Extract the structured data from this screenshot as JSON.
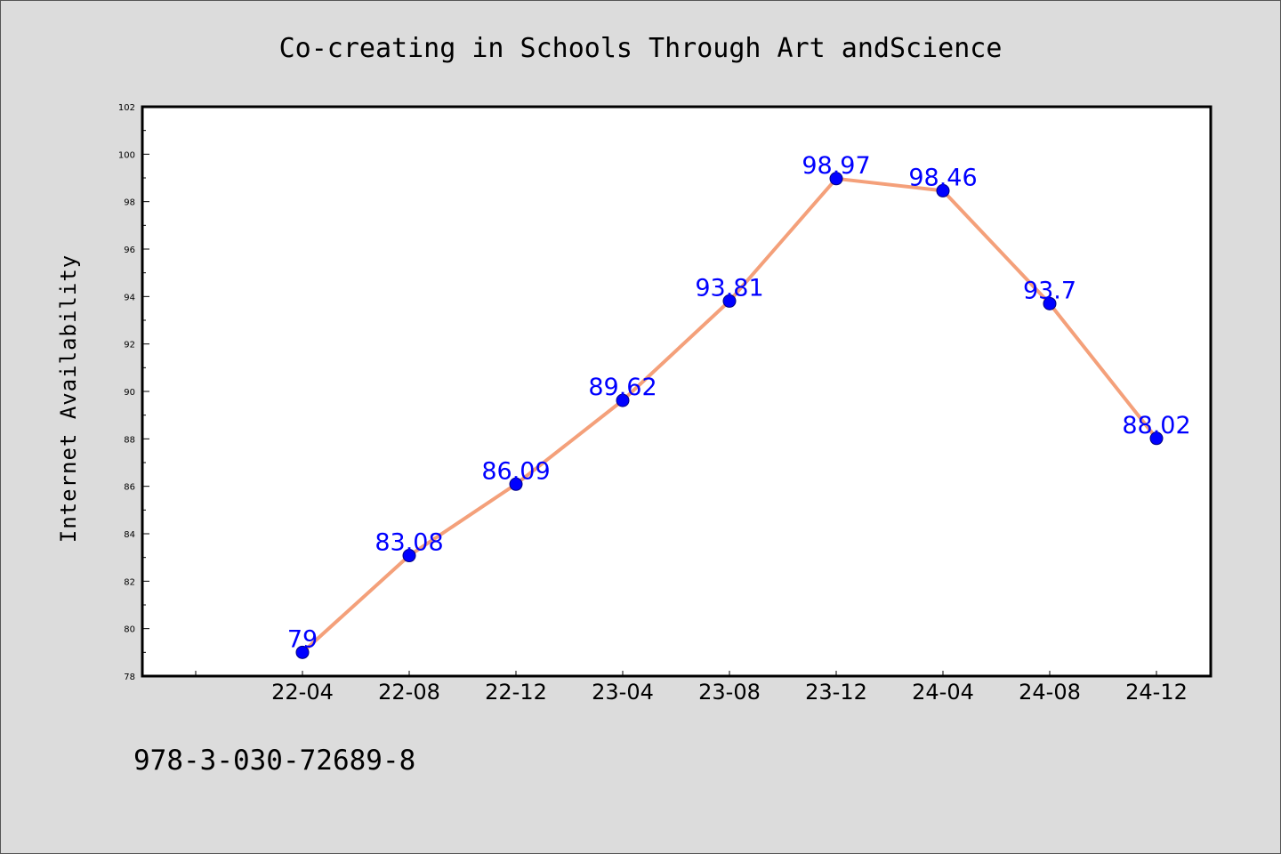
{
  "chart_data": {
    "type": "line",
    "title": "Co-creating in Schools Through Art andScience",
    "xlabel": "",
    "ylabel": "Internet Availability",
    "categories": [
      "22-04",
      "22-08",
      "22-12",
      "23-04",
      "23-08",
      "23-12",
      "24-04",
      "24-08",
      "24-12"
    ],
    "series": [
      {
        "values": [
          79,
          83.08,
          86.09,
          89.62,
          93.81,
          98.97,
          98.46,
          93.7,
          88.02
        ],
        "labels": [
          "79",
          "83.08",
          "86.09",
          "89.62",
          "93.81",
          "98.97",
          "98.46",
          "93.7",
          "88.02"
        ]
      }
    ],
    "ylim": [
      78,
      102
    ],
    "yticks": [
      "78",
      "80",
      "82",
      "84",
      "86",
      "88",
      "90",
      "92",
      "94",
      "96",
      "98",
      "100",
      "102"
    ],
    "grid": false,
    "legend": "none",
    "colors": {
      "line": "#f4a07a",
      "marker": "#0000ff",
      "data_label": "#0000ff",
      "background": "#dcdcdc",
      "plot_area": "#ffffff"
    }
  },
  "footer": {
    "isbn": "978-3-030-72689-8"
  }
}
